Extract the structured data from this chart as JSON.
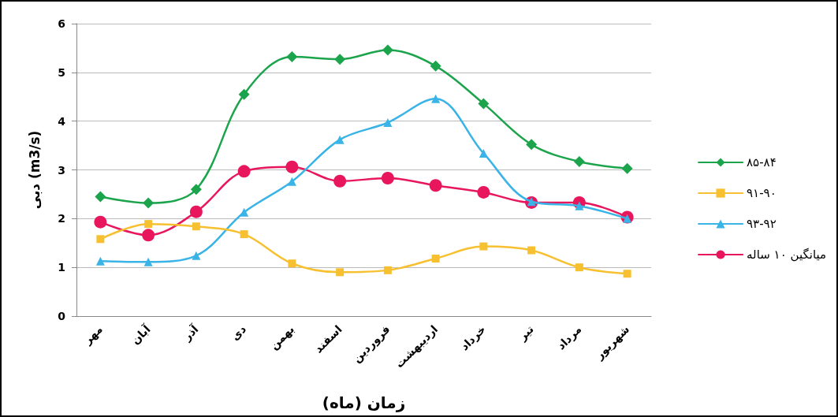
{
  "chart_data": {
    "type": "line",
    "xlabel": "زمان (ماه)",
    "ylabel": "دبی (m3/s)",
    "categories": [
      "مهر",
      "آبان",
      "آذر",
      "دی",
      "بهمن",
      "اسفند",
      "فروردین",
      "اردیبهشت",
      "خرداد",
      "تیر",
      "مرداد",
      "شهریور"
    ],
    "series": [
      {
        "name": "۸۵-۸۴",
        "color": "#1ca44c",
        "marker": "diamond",
        "values": [
          2.45,
          2.32,
          2.6,
          4.55,
          5.32,
          5.27,
          5.46,
          5.13,
          4.36,
          3.52,
          3.17,
          3.03
        ]
      },
      {
        "name": "۹۱-۹۰",
        "color": "#f7c030",
        "marker": "square",
        "values": [
          1.58,
          1.89,
          1.84,
          1.68,
          1.08,
          0.9,
          0.94,
          1.18,
          1.43,
          1.35,
          1.0,
          0.87
        ]
      },
      {
        "name": "۹۳-۹۲",
        "color": "#3ab4e6",
        "marker": "triangle",
        "values": [
          1.13,
          1.11,
          1.24,
          2.13,
          2.76,
          3.62,
          3.97,
          4.46,
          3.34,
          2.35,
          2.26,
          2.0
        ]
      },
      {
        "name": "میانگین ۱۰ ساله",
        "color": "#e8175d",
        "marker": "circle",
        "values": [
          1.93,
          1.66,
          2.14,
          2.97,
          3.06,
          2.77,
          2.83,
          2.68,
          2.54,
          2.33,
          2.33,
          2.03
        ]
      }
    ],
    "ylim": [
      0,
      6
    ],
    "yticks": [
      0,
      1,
      2,
      3,
      4,
      5,
      6
    ],
    "grid": "y",
    "legend": "right"
  }
}
